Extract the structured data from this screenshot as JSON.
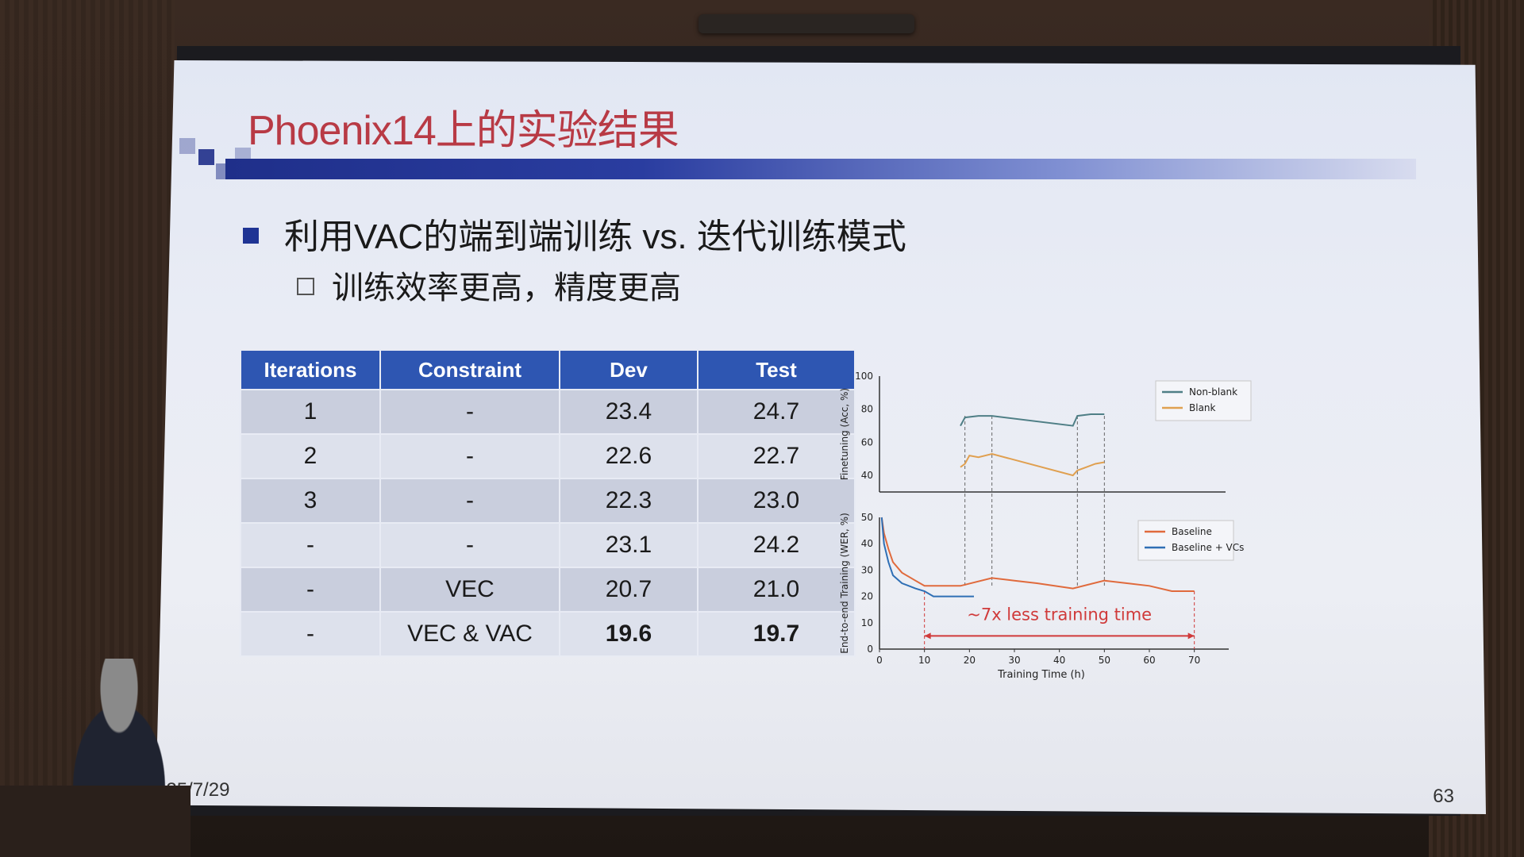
{
  "slide": {
    "title": "Phoenix14上的实验结果",
    "bullet_1": "利用VAC的端到端训练 vs. 迭代训练模式",
    "bullet_2": "训练效率更高，精度更高",
    "date": "025/7/29",
    "page_number": "63"
  },
  "table": {
    "headers": [
      "Iterations",
      "Constraint",
      "Dev",
      "Test"
    ],
    "rows": [
      [
        "1",
        "-",
        "23.4",
        "24.7"
      ],
      [
        "2",
        "-",
        "22.6",
        "22.7"
      ],
      [
        "3",
        "-",
        "22.3",
        "23.0"
      ],
      [
        "-",
        "-",
        "23.1",
        "24.2"
      ],
      [
        "-",
        "VEC",
        "20.7",
        "21.0"
      ],
      [
        "-",
        "VEC & VAC",
        "19.6",
        "19.7"
      ]
    ]
  },
  "chart_data": [
    {
      "type": "line",
      "ylabel": "Finetuning (Acc, %)",
      "ylim": [
        30,
        100
      ],
      "yticks": [
        "100",
        "80",
        "60",
        "40"
      ],
      "legend_position": "top-right",
      "series": [
        {
          "name": "Non-blank",
          "color": "#4f7f86",
          "x": [
            18,
            19,
            22,
            25,
            43,
            44,
            47,
            50
          ],
          "y": [
            70,
            75,
            76,
            76,
            70,
            76,
            77,
            77
          ]
        },
        {
          "name": "Blank",
          "color": "#e0a050",
          "x": [
            18,
            19,
            20,
            22,
            25,
            43,
            44,
            46,
            48,
            50
          ],
          "y": [
            45,
            47,
            52,
            51,
            53,
            40,
            43,
            45,
            47,
            48
          ]
        }
      ]
    },
    {
      "type": "line",
      "xlabel": "Training Time (h)",
      "ylabel": "End-to-end Training (WER, %)",
      "xlim": [
        0,
        72
      ],
      "ylim": [
        0,
        50
      ],
      "xticks": [
        "0",
        "10",
        "20",
        "30",
        "40",
        "50",
        "60",
        "70"
      ],
      "yticks": [
        "50",
        "40",
        "30",
        "20",
        "10",
        "0"
      ],
      "legend_position": "top-right",
      "annotation": "~7x less training time",
      "series": [
        {
          "name": "Baseline",
          "color": "#e06a3c",
          "x": [
            0.5,
            1,
            2,
            3,
            5,
            8,
            10,
            13,
            18,
            25,
            30,
            35,
            43,
            50,
            55,
            60,
            65,
            70
          ],
          "y": [
            50,
            44,
            38,
            33,
            29,
            26,
            24,
            24,
            24,
            27,
            26,
            25,
            23,
            26,
            25,
            24,
            22,
            22
          ]
        },
        {
          "name": "Baseline + VCs",
          "color": "#2f6fb5",
          "x": [
            0.5,
            1,
            2,
            3,
            5,
            8,
            10,
            12,
            15,
            20,
            21
          ],
          "y": [
            50,
            40,
            33,
            28,
            25,
            23,
            22,
            20,
            20,
            20,
            20
          ]
        }
      ]
    }
  ]
}
